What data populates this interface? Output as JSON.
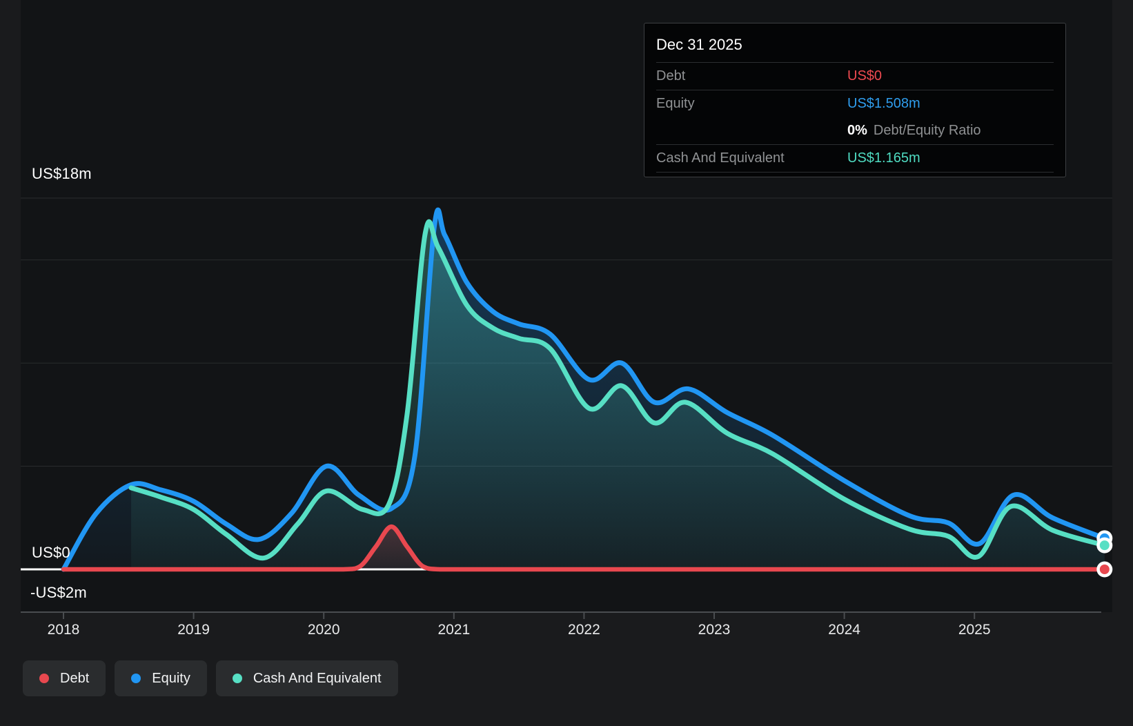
{
  "tooltip": {
    "date": "Dec 31 2025",
    "rows": [
      {
        "label": "Debt",
        "value": "US$0"
      },
      {
        "label": "Equity",
        "value": "US$1.508m"
      },
      {
        "label": "Cash And Equivalent",
        "value": "US$1.165m"
      }
    ],
    "ratio_value": "0%",
    "ratio_text": "Debt/Equity Ratio"
  },
  "y_axis": {
    "top_label": "US$18m",
    "zero_label": "US$0",
    "bottom_label": "-US$2m"
  },
  "x_axis": {
    "years": [
      "2018",
      "2019",
      "2020",
      "2021",
      "2022",
      "2023",
      "2024",
      "2025"
    ]
  },
  "legend": {
    "items": [
      {
        "label": "Debt",
        "color": "#e8484f"
      },
      {
        "label": "Equity",
        "color": "#2196f3"
      },
      {
        "label": "Cash And Equivalent",
        "color": "#57dfc4"
      }
    ]
  },
  "colors": {
    "debt": "#e8484f",
    "equity": "#2196f3",
    "cash": "#57dfc4",
    "plot_bg": "#121416",
    "page_bg": "#1a1b1d",
    "gridline": "#2a2c2e",
    "zero_line": "#ffffff",
    "axis_line": "#4a4d50"
  },
  "chart_data": {
    "type": "area",
    "title": "",
    "x_unit": "year",
    "x_range": [
      2018.0,
      2026.05
    ],
    "y_unit": "US$ millions",
    "y_range": [
      -2,
      18
    ],
    "gridlines_m": [
      5,
      10,
      15,
      18
    ],
    "zero_line_m": 0,
    "legend_position": "bottom-left",
    "series": [
      {
        "name": "Equity",
        "color": "#2196f3",
        "end_value_label": "US$1.508m",
        "points": [
          [
            2018.0,
            0.0
          ],
          [
            2018.25,
            2.7
          ],
          [
            2018.52,
            4.1
          ],
          [
            2018.75,
            3.85
          ],
          [
            2019.0,
            3.3
          ],
          [
            2019.25,
            2.2
          ],
          [
            2019.5,
            1.45
          ],
          [
            2019.75,
            2.7
          ],
          [
            2020.02,
            5.0
          ],
          [
            2020.27,
            3.6
          ],
          [
            2020.52,
            2.95
          ],
          [
            2020.7,
            5.5
          ],
          [
            2020.85,
            16.65
          ],
          [
            2020.93,
            16.2
          ],
          [
            2021.1,
            13.9
          ],
          [
            2021.3,
            12.5
          ],
          [
            2021.5,
            11.9
          ],
          [
            2021.74,
            11.4
          ],
          [
            2022.04,
            9.2
          ],
          [
            2022.29,
            10.0
          ],
          [
            2022.54,
            8.1
          ],
          [
            2022.8,
            8.75
          ],
          [
            2023.1,
            7.6
          ],
          [
            2023.45,
            6.5
          ],
          [
            2024.0,
            4.3
          ],
          [
            2024.5,
            2.6
          ],
          [
            2024.8,
            2.25
          ],
          [
            2025.04,
            1.25
          ],
          [
            2025.3,
            3.6
          ],
          [
            2025.6,
            2.5
          ],
          [
            2026.0,
            1.508
          ]
        ]
      },
      {
        "name": "Cash And Equivalent",
        "color": "#57dfc4",
        "end_value_label": "US$1.165m",
        "points": [
          [
            2018.52,
            3.95
          ],
          [
            2018.75,
            3.5
          ],
          [
            2019.0,
            2.9
          ],
          [
            2019.25,
            1.7
          ],
          [
            2019.54,
            0.55
          ],
          [
            2019.8,
            2.2
          ],
          [
            2020.02,
            3.8
          ],
          [
            2020.3,
            2.9
          ],
          [
            2020.5,
            3.15
          ],
          [
            2020.64,
            7.5
          ],
          [
            2020.78,
            16.3
          ],
          [
            2020.88,
            15.6
          ],
          [
            2021.1,
            12.8
          ],
          [
            2021.3,
            11.7
          ],
          [
            2021.5,
            11.2
          ],
          [
            2021.74,
            10.7
          ],
          [
            2022.04,
            7.8
          ],
          [
            2022.29,
            8.9
          ],
          [
            2022.54,
            7.1
          ],
          [
            2022.78,
            8.1
          ],
          [
            2023.1,
            6.6
          ],
          [
            2023.45,
            5.6
          ],
          [
            2024.0,
            3.4
          ],
          [
            2024.5,
            1.95
          ],
          [
            2024.8,
            1.6
          ],
          [
            2025.03,
            0.62
          ],
          [
            2025.28,
            3.05
          ],
          [
            2025.6,
            1.9
          ],
          [
            2026.0,
            1.165
          ]
        ]
      },
      {
        "name": "Debt",
        "color": "#e8484f",
        "end_value_label": "US$0",
        "points": [
          [
            2018.0,
            0
          ],
          [
            2019.0,
            0
          ],
          [
            2019.75,
            0
          ],
          [
            2020.15,
            0
          ],
          [
            2020.28,
            0.15
          ],
          [
            2020.4,
            1.1
          ],
          [
            2020.52,
            2.07
          ],
          [
            2020.64,
            1.1
          ],
          [
            2020.76,
            0.15
          ],
          [
            2020.9,
            0
          ],
          [
            2021.25,
            0
          ],
          [
            2022.0,
            0
          ],
          [
            2023.0,
            0
          ],
          [
            2024.0,
            0
          ],
          [
            2025.0,
            0
          ],
          [
            2026.0,
            0
          ]
        ]
      }
    ]
  }
}
